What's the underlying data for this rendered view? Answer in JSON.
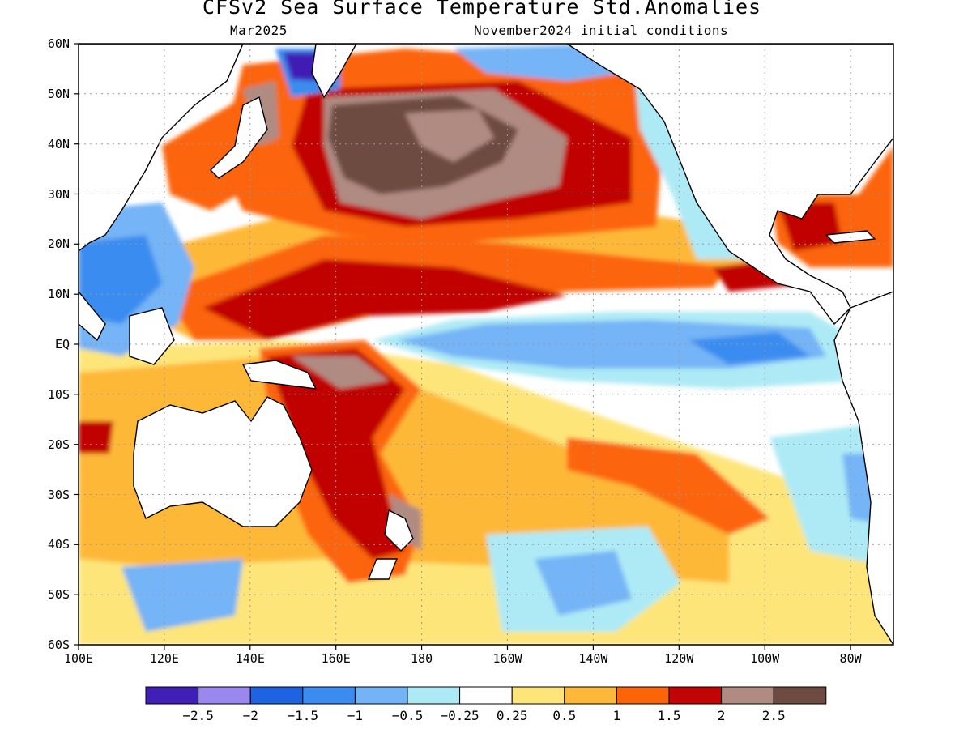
{
  "map": {
    "title": "CFSv2 Sea Surface Temperature Std.Anomalies",
    "valid_month": "Mar2025",
    "initial_conditions": "November2024 initial conditions",
    "lat_labels": [
      "60N",
      "50N",
      "40N",
      "30N",
      "20N",
      "10N",
      "EQ",
      "10S",
      "20S",
      "30S",
      "40S",
      "50S",
      "60S"
    ],
    "lon_labels": [
      "100E",
      "120E",
      "140E",
      "160E",
      "180",
      "160W",
      "140W",
      "120W",
      "100W",
      "80W"
    ],
    "extent": {
      "lon_min_E": 100,
      "lon_max_E": 290,
      "lat_min": -60,
      "lat_max": 60
    }
  },
  "colorbar": {
    "colors": [
      "#3f1fb5",
      "#9b88ee",
      "#1e64e2",
      "#3b8cf0",
      "#74b4f6",
      "#aeeaf5",
      "#ffffff",
      "#fde57a",
      "#feb839",
      "#fc6507",
      "#c10404",
      "#b08b82",
      "#6e4b40"
    ],
    "labels": [
      "−2.5",
      "−2",
      "−1.5",
      "−1",
      "−0.5",
      "−0.25",
      "0.25",
      "0.5",
      "1",
      "1.5",
      "2",
      "2.5"
    ]
  }
}
